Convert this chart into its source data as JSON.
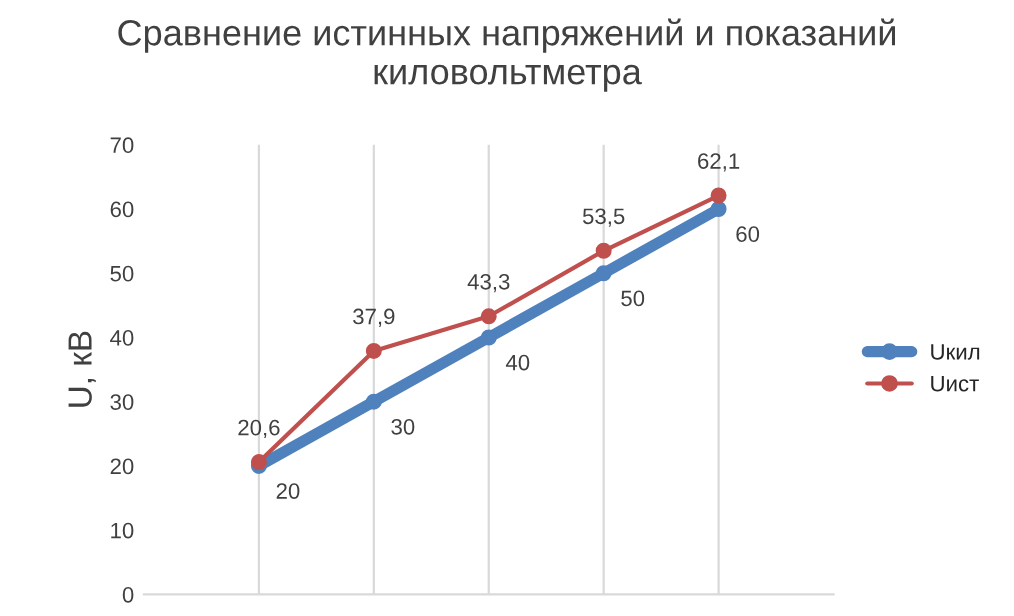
{
  "chart_data": {
    "type": "line",
    "title": "Сравнение истинных напряжений и показаний\nкиловольтметра",
    "ylabel": "U, кВ",
    "categories": [
      null,
      null,
      null,
      null,
      null
    ],
    "series": [
      {
        "name": "Uкил",
        "color": "#4f81bd",
        "values": [
          20,
          30,
          40,
          50,
          60
        ],
        "value_labels": [
          "20",
          "30",
          "40",
          "50",
          "60"
        ]
      },
      {
        "name": "Uист",
        "color": "#c0504d",
        "values": [
          20.6,
          37.9,
          43.3,
          53.5,
          62.1
        ],
        "value_labels": [
          "20,6",
          "37,9",
          "43,3",
          "53,5",
          "62,1"
        ]
      }
    ],
    "ylim": [
      0,
      70
    ],
    "yticks": [
      0,
      10,
      20,
      30,
      40,
      50,
      60,
      70
    ],
    "grid": "x",
    "legend": "right",
    "marker": "circle"
  }
}
